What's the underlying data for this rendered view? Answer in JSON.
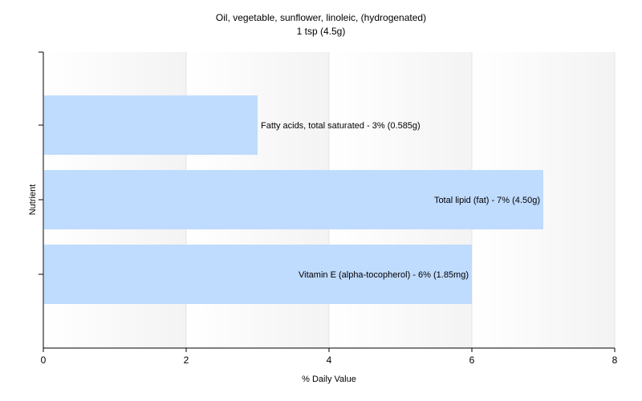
{
  "chart_data": {
    "type": "bar",
    "orientation": "horizontal",
    "title": "Oil, vegetable, sunflower, linoleic, (hydrogenated)",
    "subtitle": "1 tsp (4.5g)",
    "xlabel": "% Daily Value",
    "ylabel": "Nutrient",
    "xlim": [
      0,
      8
    ],
    "xticks": [
      0,
      2,
      4,
      6,
      8
    ],
    "grid": true,
    "categories": [
      "Fatty acids, total saturated",
      "Total lipid (fat)",
      "Vitamin E (alpha-tocopherol)"
    ],
    "values": [
      3,
      7,
      6
    ],
    "labels": [
      "Fatty acids, total saturated - 3% (0.585g)",
      "Total lipid (fat) - 7% (4.50g)",
      "Vitamin E (alpha-tocopherol) - 6% (1.85mg)"
    ],
    "bar_color": "#bfdbfe"
  }
}
